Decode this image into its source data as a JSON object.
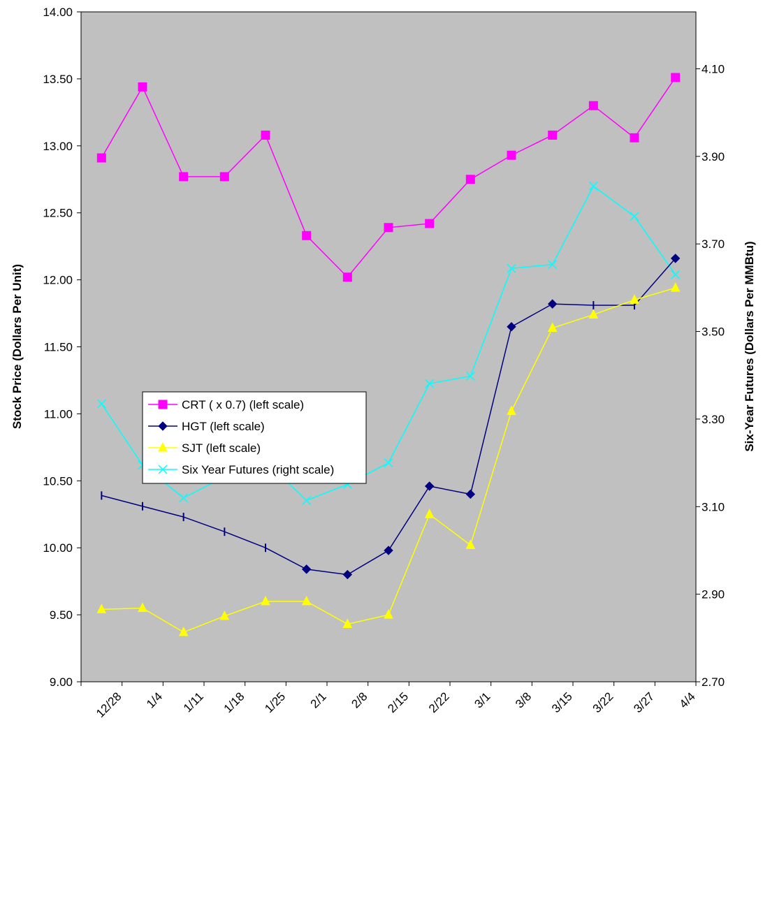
{
  "chart_data": {
    "type": "line",
    "categories": [
      "12/28",
      "1/4",
      "1/11",
      "1/18",
      "1/25",
      "2/1",
      "2/8",
      "2/15",
      "2/22",
      "3/1",
      "3/8",
      "3/15",
      "3/22",
      "3/27",
      "4/4"
    ],
    "left_axis": {
      "label": "Stock Price (Dollars Per Unit)",
      "min": 9.0,
      "max": 14.0,
      "ticks": [
        "9.00",
        "9.50",
        "10.00",
        "10.50",
        "11.00",
        "11.50",
        "12.00",
        "12.50",
        "13.00",
        "13.50",
        "14.00"
      ]
    },
    "right_axis": {
      "label": "Six-Year Futures (Dollars Per MMBtu)",
      "min": 2.7,
      "max": 4.23,
      "ticks": [
        "2.70",
        "2.90",
        "3.10",
        "3.30",
        "3.50",
        "3.70",
        "3.90",
        "4.10"
      ]
    },
    "background": "#c0c0c0",
    "grid": false,
    "legend_position": "left-middle",
    "series": [
      {
        "name": "CRT ( x 0.7) (left scale)",
        "axis": "left",
        "color": "#ff00ff",
        "marker": "square",
        "values": [
          12.91,
          13.44,
          12.77,
          12.77,
          13.08,
          12.33,
          12.02,
          12.39,
          12.42,
          12.75,
          12.93,
          13.08,
          13.3,
          13.06,
          13.51
        ]
      },
      {
        "name": "HGT (left scale)",
        "axis": "left",
        "color": "#000080",
        "marker": "diamond",
        "values": [
          10.39,
          10.31,
          10.23,
          10.12,
          10.0,
          9.84,
          9.8,
          9.98,
          10.46,
          10.4,
          11.65,
          11.82,
          11.81,
          11.81,
          12.16
        ]
      },
      {
        "name": "SJT (left scale)",
        "axis": "left",
        "color": "#ffff00",
        "marker": "triangle",
        "values": [
          9.54,
          9.55,
          9.37,
          9.49,
          9.6,
          9.6,
          9.43,
          9.5,
          10.25,
          10.02,
          11.02,
          11.64,
          11.74,
          11.85,
          11.94
        ]
      },
      {
        "name": "Six Year Futures (right scale)",
        "axis": "right",
        "color": "#00ffff",
        "marker": "x",
        "values": [
          3.335,
          3.195,
          3.12,
          3.168,
          3.204,
          3.114,
          3.151,
          3.2,
          3.381,
          3.398,
          3.644,
          3.653,
          3.832,
          3.763,
          3.63
        ]
      }
    ]
  }
}
